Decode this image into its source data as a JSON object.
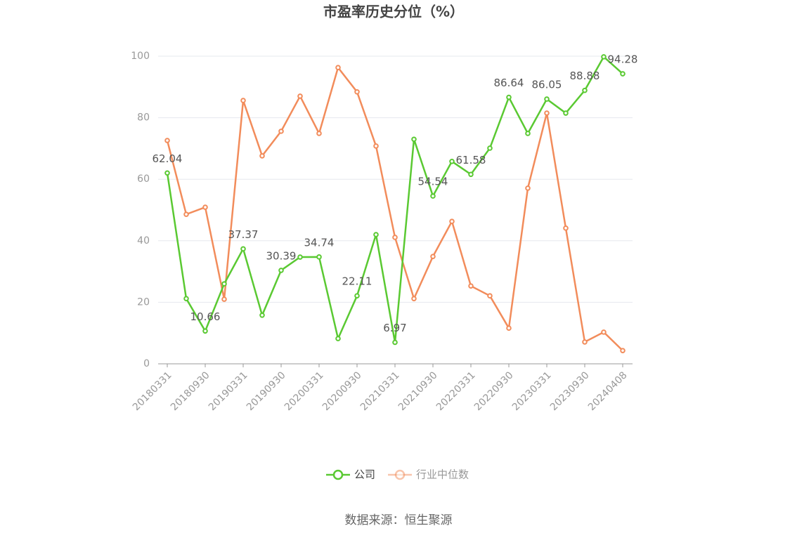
{
  "chart_data": {
    "type": "line",
    "title": "市盈率历史分位（%）",
    "source": "数据来源：恒生聚源",
    "categories": [
      "20180331",
      null,
      "20180930",
      null,
      "20190331",
      null,
      "20190930",
      null,
      "20200331",
      null,
      "20200930",
      null,
      "20210331",
      null,
      "20210930",
      null,
      "20220331",
      null,
      "20220930",
      null,
      "20230331",
      null,
      "20230930",
      null,
      "20240408"
    ],
    "series": [
      {
        "name": "公司",
        "color": "#5ac932",
        "values": [
          62.04,
          21.2,
          10.66,
          26.0,
          37.37,
          15.8,
          30.39,
          34.7,
          34.74,
          8.2,
          22.11,
          42.0,
          6.97,
          73.0,
          54.54,
          65.8,
          61.58,
          70.1,
          86.64,
          74.9,
          86.05,
          81.5,
          88.88,
          99.8,
          94.28
        ],
        "value_labels": [
          "62.04",
          null,
          "10.66",
          null,
          "37.37",
          null,
          "30.39",
          null,
          "34.74",
          null,
          "22.11",
          null,
          "6.97",
          null,
          "54.54",
          null,
          "61.58",
          null,
          "86.64",
          null,
          "86.05",
          null,
          "88.88",
          null,
          "94.28"
        ]
      },
      {
        "name": "行业中位数",
        "color": "#f28c5b",
        "values": [
          72.6,
          48.6,
          50.9,
          21.0,
          85.6,
          67.6,
          75.6,
          87.0,
          74.9,
          96.3,
          88.4,
          70.8,
          41.1,
          21.2,
          34.9,
          46.3,
          25.3,
          22.1,
          11.6,
          57.1,
          81.5,
          44.1,
          7.1,
          10.3,
          4.3
        ]
      }
    ],
    "ylim": [
      0,
      100
    ],
    "yticks": [
      0,
      20,
      40,
      60,
      80,
      100
    ],
    "grid": true,
    "legend": "bottom"
  }
}
